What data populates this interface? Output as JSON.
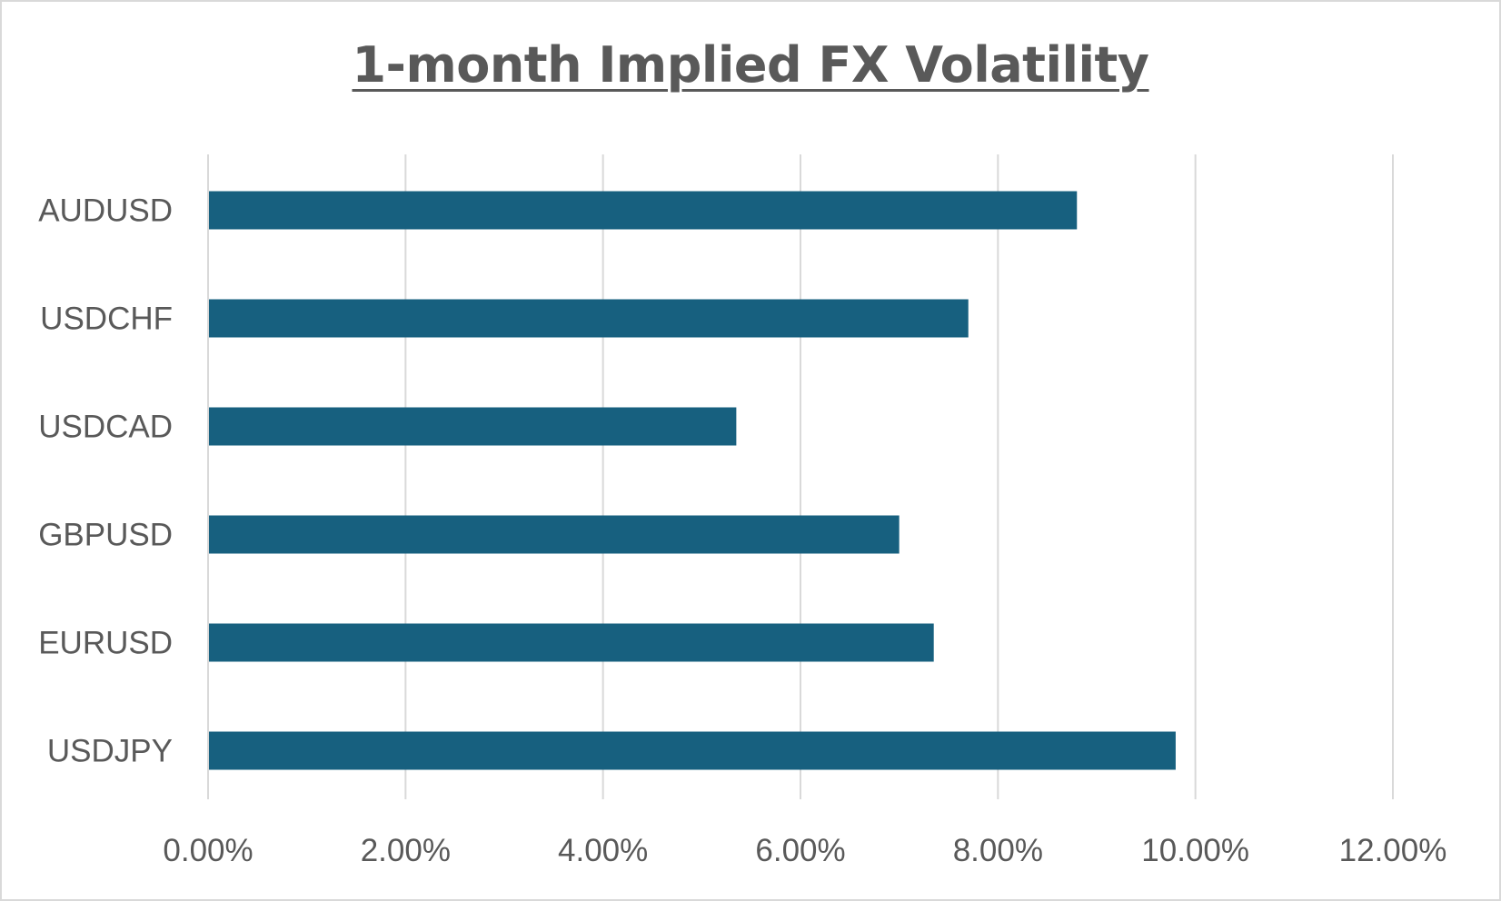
{
  "chart_data": {
    "type": "bar",
    "orientation": "horizontal",
    "title": "1-month Implied FX Volatility",
    "categories": [
      "AUDUSD",
      "USDCHF",
      "USDCAD",
      "GBPUSD",
      "EURUSD",
      "USDJPY"
    ],
    "values": [
      8.8,
      7.7,
      5.35,
      7.0,
      7.35,
      9.8
    ],
    "value_unit": "%",
    "xlim": [
      0,
      12
    ],
    "x_ticks": [
      "0.00%",
      "2.00%",
      "4.00%",
      "6.00%",
      "8.00%",
      "10.00%",
      "12.00%"
    ],
    "xlabel": "",
    "ylabel": "",
    "grid": "vertical",
    "legend": "none",
    "bar_color": "#17607f",
    "grid_color": "#d9d9d9",
    "text_color": "#595959"
  }
}
